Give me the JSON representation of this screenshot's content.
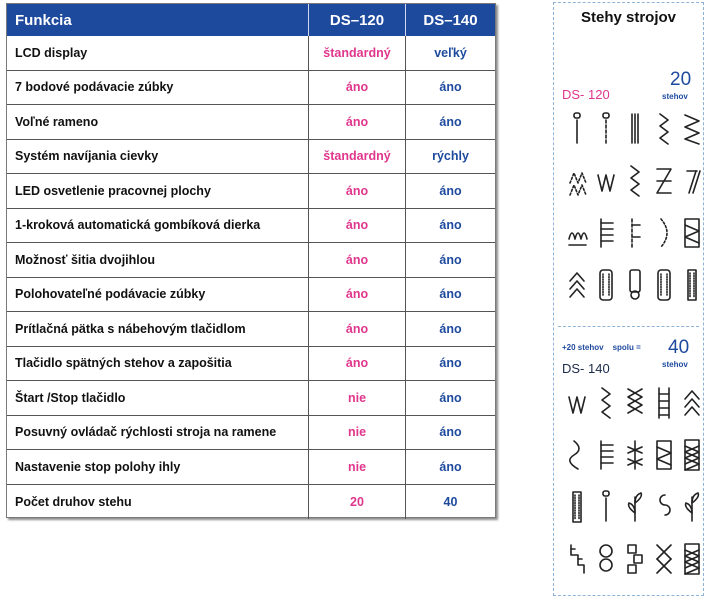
{
  "table": {
    "headers": [
      "Funkcia",
      "DS–120",
      "DS–140"
    ],
    "rows": [
      [
        "LCD display",
        "štandardný",
        "veľký"
      ],
      [
        "7 bodové podávacie zúbky",
        "áno",
        "áno"
      ],
      [
        "Voľné rameno",
        "áno",
        "áno"
      ],
      [
        "Systém navíjania cievky",
        "štandardný",
        "rýchly"
      ],
      [
        "LED osvetlenie pracovnej plochy",
        "áno",
        "áno"
      ],
      [
        "1-kroková automatická gombíková dierka",
        "áno",
        "áno"
      ],
      [
        "Možnosť šitia dvojihlou",
        "áno",
        "áno"
      ],
      [
        "Polohovateľné podávacie zúbky",
        "áno",
        "áno"
      ],
      [
        "Prítlačná pätka s nábehovým tlačidlom",
        "áno",
        "áno"
      ],
      [
        "Tlačidlo spätných stehov a zapošitia",
        "áno",
        "áno"
      ],
      [
        "Štart /Stop tlačidlo",
        "nie",
        "áno"
      ],
      [
        "Posuvný ovládač rýchlosti stroja na ramene",
        "nie",
        "áno"
      ],
      [
        "Nastavenie stop polohy ihly",
        "nie",
        "áno"
      ],
      [
        "Počet druhov stehu",
        "20",
        "40"
      ]
    ]
  },
  "stitches_panel": {
    "title": "Stehy strojov",
    "ds120_label": "DS- 120",
    "ds120_count": "20",
    "ds120_count_unit": "stehov",
    "ds140_label": "DS- 140",
    "ds140_extra": "+20 stehov",
    "ds140_total_label": "spolu =",
    "ds140_count": "40",
    "ds140_count_unit": "stehov"
  },
  "colors": {
    "header_bg": "#1e4a9e",
    "ds120_value": "#e0368c",
    "ds140_value": "#1e4a9e",
    "panel_border": "#8fb3d6"
  }
}
